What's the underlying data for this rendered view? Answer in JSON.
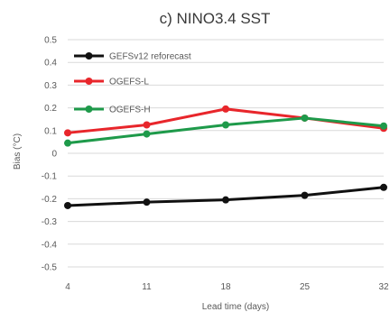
{
  "chart_data": {
    "type": "line",
    "title": "c) NINO3.4 SST",
    "xlabel": "Lead time (days)",
    "ylabel": "Bias (°C)",
    "x": [
      4,
      11,
      18,
      25,
      32
    ],
    "categories": [
      "4",
      "11",
      "18",
      "25",
      "32"
    ],
    "ylim": [
      -0.5,
      0.5
    ],
    "yticks": [
      "0.5",
      "0.4",
      "0.3",
      "0.2",
      "0.1",
      "0",
      "-0.1",
      "-0.2",
      "-0.3",
      "-0.4",
      "-0.5"
    ],
    "grid": "horizontal",
    "legend_position": "top-left",
    "series": [
      {
        "name": "GEFSv12 reforecast",
        "color": "#111111",
        "values": [
          -0.23,
          -0.215,
          -0.205,
          -0.185,
          -0.15
        ]
      },
      {
        "name": "OGEFS-L",
        "color": "#e8262b",
        "values": [
          0.09,
          0.125,
          0.195,
          0.155,
          0.11
        ]
      },
      {
        "name": "OGEFS-H",
        "color": "#1e9a4a",
        "values": [
          0.045,
          0.085,
          0.125,
          0.155,
          0.12
        ]
      }
    ]
  }
}
